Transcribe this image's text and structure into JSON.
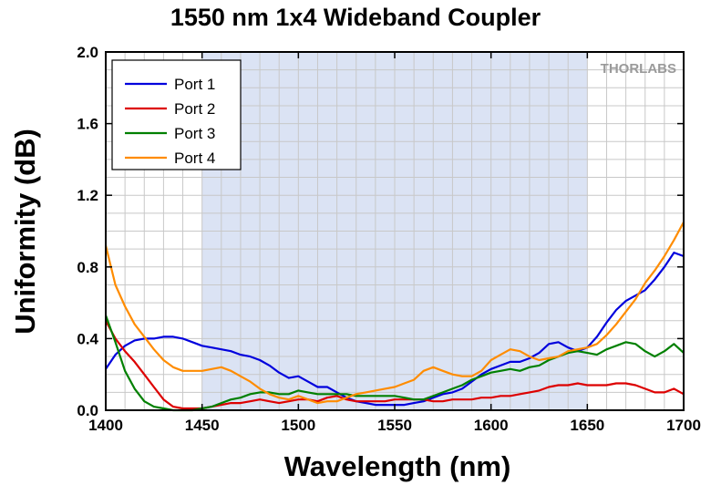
{
  "chart_data": {
    "type": "line",
    "title": "1550 nm 1x4 Wideband Coupler",
    "xlabel": "Wavelength (nm)",
    "ylabel": "Uniformity (dB)",
    "xlim": [
      1400,
      1700
    ],
    "ylim": [
      0,
      2.0
    ],
    "xticks": [
      1400,
      1450,
      1500,
      1550,
      1600,
      1650,
      1700
    ],
    "yticks": [
      0.0,
      0.4,
      0.8,
      1.2,
      1.6,
      2.0
    ],
    "xtick_labels": [
      "1400",
      "1450",
      "1500",
      "1550",
      "1600",
      "1650",
      "1700"
    ],
    "ytick_labels": [
      "0.0",
      "0.4",
      "0.8",
      "1.2",
      "1.6",
      "2.0"
    ],
    "grid": true,
    "shaded_region": [
      1450,
      1650
    ],
    "shaded_color": "#dbe3f4",
    "legend_position": "top-left",
    "logo": "THORLABS",
    "series": [
      {
        "name": "Port 1",
        "color": "#0000dd",
        "x": [
          1400,
          1405,
          1410,
          1415,
          1420,
          1425,
          1430,
          1435,
          1440,
          1445,
          1450,
          1455,
          1460,
          1465,
          1470,
          1475,
          1480,
          1485,
          1490,
          1495,
          1500,
          1505,
          1510,
          1515,
          1520,
          1525,
          1530,
          1535,
          1540,
          1545,
          1550,
          1555,
          1560,
          1565,
          1570,
          1575,
          1580,
          1585,
          1590,
          1595,
          1600,
          1605,
          1610,
          1615,
          1620,
          1625,
          1630,
          1635,
          1640,
          1645,
          1650,
          1655,
          1660,
          1665,
          1670,
          1675,
          1680,
          1685,
          1690,
          1695,
          1700
        ],
        "values": [
          0.23,
          0.31,
          0.36,
          0.39,
          0.4,
          0.4,
          0.41,
          0.41,
          0.4,
          0.38,
          0.36,
          0.35,
          0.34,
          0.33,
          0.31,
          0.3,
          0.28,
          0.25,
          0.21,
          0.18,
          0.19,
          0.16,
          0.13,
          0.13,
          0.1,
          0.07,
          0.05,
          0.04,
          0.03,
          0.03,
          0.03,
          0.03,
          0.04,
          0.05,
          0.07,
          0.09,
          0.1,
          0.12,
          0.16,
          0.2,
          0.23,
          0.25,
          0.27,
          0.27,
          0.29,
          0.32,
          0.37,
          0.38,
          0.35,
          0.33,
          0.35,
          0.41,
          0.49,
          0.56,
          0.61,
          0.64,
          0.67,
          0.73,
          0.8,
          0.88,
          0.86
        ]
      },
      {
        "name": "Port 2",
        "color": "#dd0000",
        "x": [
          1400,
          1405,
          1410,
          1415,
          1420,
          1425,
          1430,
          1435,
          1440,
          1445,
          1450,
          1455,
          1460,
          1465,
          1470,
          1475,
          1480,
          1485,
          1490,
          1495,
          1500,
          1505,
          1510,
          1515,
          1520,
          1525,
          1530,
          1535,
          1540,
          1545,
          1550,
          1555,
          1560,
          1565,
          1570,
          1575,
          1580,
          1585,
          1590,
          1595,
          1600,
          1605,
          1610,
          1615,
          1620,
          1625,
          1630,
          1635,
          1640,
          1645,
          1650,
          1655,
          1660,
          1665,
          1670,
          1675,
          1680,
          1685,
          1690,
          1695,
          1700
        ],
        "values": [
          0.5,
          0.4,
          0.33,
          0.27,
          0.2,
          0.13,
          0.06,
          0.02,
          0.01,
          0.01,
          0.01,
          0.02,
          0.03,
          0.04,
          0.04,
          0.05,
          0.06,
          0.05,
          0.04,
          0.05,
          0.06,
          0.06,
          0.05,
          0.07,
          0.08,
          0.06,
          0.05,
          0.05,
          0.05,
          0.05,
          0.06,
          0.06,
          0.06,
          0.06,
          0.05,
          0.05,
          0.06,
          0.06,
          0.06,
          0.07,
          0.07,
          0.08,
          0.08,
          0.09,
          0.1,
          0.11,
          0.13,
          0.14,
          0.14,
          0.15,
          0.14,
          0.14,
          0.14,
          0.15,
          0.15,
          0.14,
          0.12,
          0.1,
          0.1,
          0.12,
          0.09
        ]
      },
      {
        "name": "Port 3",
        "color": "#008000",
        "x": [
          1400,
          1405,
          1410,
          1415,
          1420,
          1425,
          1430,
          1435,
          1440,
          1445,
          1450,
          1455,
          1460,
          1465,
          1470,
          1475,
          1480,
          1485,
          1490,
          1495,
          1500,
          1505,
          1510,
          1515,
          1520,
          1525,
          1530,
          1535,
          1540,
          1545,
          1550,
          1555,
          1560,
          1565,
          1570,
          1575,
          1580,
          1585,
          1590,
          1595,
          1600,
          1605,
          1610,
          1615,
          1620,
          1625,
          1630,
          1635,
          1640,
          1645,
          1650,
          1655,
          1660,
          1665,
          1670,
          1675,
          1680,
          1685,
          1690,
          1695,
          1700
        ],
        "values": [
          0.53,
          0.38,
          0.22,
          0.12,
          0.05,
          0.02,
          0.01,
          0.0,
          0.0,
          0.0,
          0.01,
          0.02,
          0.04,
          0.06,
          0.07,
          0.09,
          0.1,
          0.1,
          0.09,
          0.09,
          0.11,
          0.1,
          0.09,
          0.09,
          0.09,
          0.09,
          0.08,
          0.08,
          0.08,
          0.08,
          0.08,
          0.07,
          0.06,
          0.06,
          0.08,
          0.1,
          0.12,
          0.14,
          0.17,
          0.19,
          0.21,
          0.22,
          0.23,
          0.22,
          0.24,
          0.25,
          0.28,
          0.3,
          0.32,
          0.33,
          0.32,
          0.31,
          0.34,
          0.36,
          0.38,
          0.37,
          0.33,
          0.3,
          0.33,
          0.37,
          0.32
        ]
      },
      {
        "name": "Port 4",
        "color": "#ff8c00",
        "x": [
          1400,
          1405,
          1410,
          1415,
          1420,
          1425,
          1430,
          1435,
          1440,
          1445,
          1450,
          1455,
          1460,
          1465,
          1470,
          1475,
          1480,
          1485,
          1490,
          1495,
          1500,
          1505,
          1510,
          1515,
          1520,
          1525,
          1530,
          1535,
          1540,
          1545,
          1550,
          1555,
          1560,
          1565,
          1570,
          1575,
          1580,
          1585,
          1590,
          1595,
          1600,
          1605,
          1610,
          1615,
          1620,
          1625,
          1630,
          1635,
          1640,
          1645,
          1650,
          1655,
          1660,
          1665,
          1670,
          1675,
          1680,
          1685,
          1690,
          1695,
          1700
        ],
        "values": [
          0.92,
          0.7,
          0.58,
          0.48,
          0.41,
          0.34,
          0.28,
          0.24,
          0.22,
          0.22,
          0.22,
          0.23,
          0.24,
          0.22,
          0.19,
          0.16,
          0.12,
          0.09,
          0.07,
          0.06,
          0.08,
          0.06,
          0.04,
          0.05,
          0.05,
          0.07,
          0.09,
          0.1,
          0.11,
          0.12,
          0.13,
          0.15,
          0.17,
          0.22,
          0.24,
          0.22,
          0.2,
          0.19,
          0.19,
          0.22,
          0.28,
          0.31,
          0.34,
          0.33,
          0.3,
          0.28,
          0.29,
          0.3,
          0.33,
          0.34,
          0.35,
          0.37,
          0.42,
          0.48,
          0.55,
          0.62,
          0.71,
          0.78,
          0.86,
          0.95,
          1.05
        ]
      }
    ]
  }
}
